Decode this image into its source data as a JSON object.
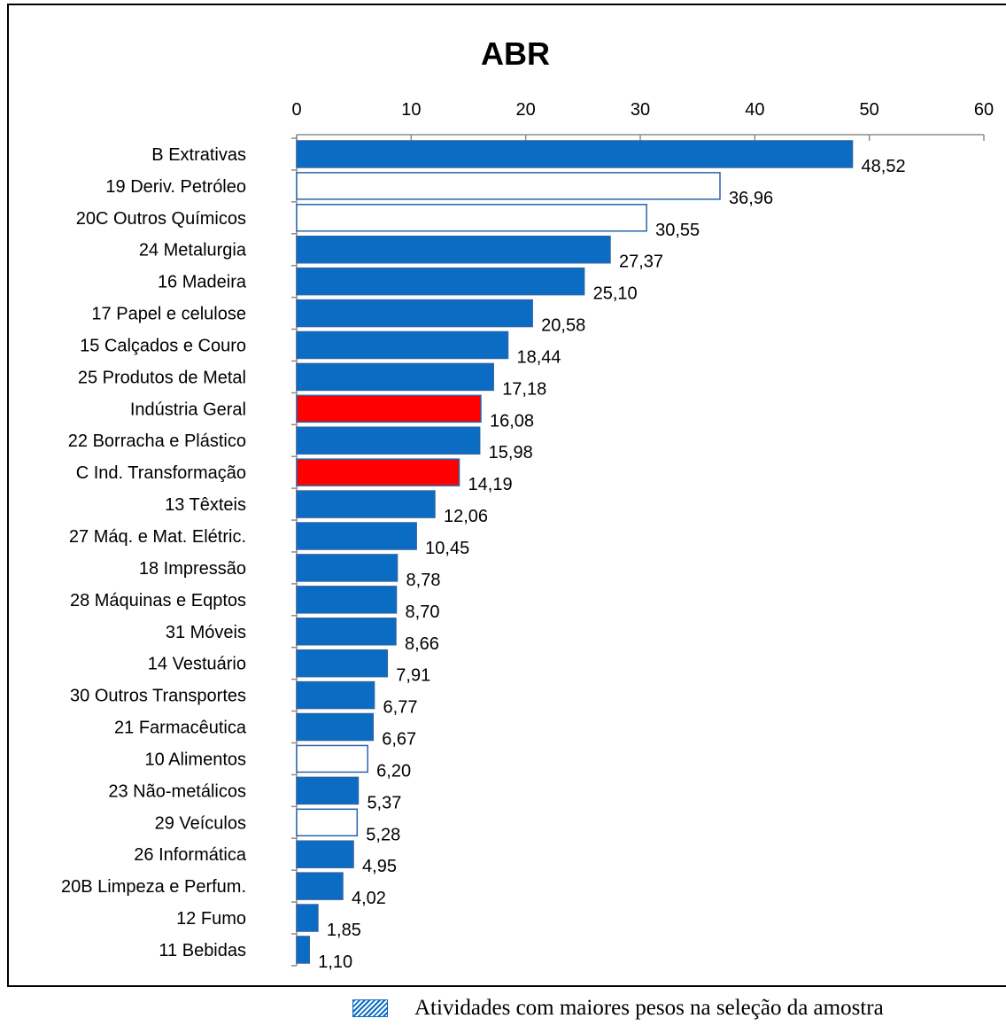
{
  "chart_data": {
    "type": "bar",
    "orientation": "horizontal",
    "title": "ABR",
    "xlim": [
      0,
      60
    ],
    "xticks": [
      "0",
      "10",
      "20",
      "30",
      "40",
      "50",
      "60"
    ],
    "categories": [
      "B  Extrativas",
      "19  Deriv. Petróleo",
      "20C  Outros Químicos",
      "24  Metalurgia",
      "16  Madeira",
      "17  Papel e celulose",
      "15  Calçados e Couro",
      "25  Produtos de Metal",
      "Indústria Geral",
      "22  Borracha e Plástico",
      "C  Ind. Transformação",
      "13  Têxteis",
      "27  Máq. e Mat. Elétric.",
      "18  Impressão",
      "28  Máquinas e Eqptos",
      "31  Móveis",
      "14  Vestuário",
      "30  Outros Transportes",
      "21  Farmacêutica",
      "10  Alimentos",
      "23  Não-metálicos",
      "29  Veículos",
      "26  Informática",
      "20B  Limpeza e Perfum.",
      "12  Fumo",
      "11  Bebidas"
    ],
    "values": [
      48.52,
      36.96,
      30.55,
      27.37,
      25.1,
      20.58,
      18.44,
      17.18,
      16.08,
      15.98,
      14.19,
      12.06,
      10.45,
      8.78,
      8.7,
      8.66,
      7.91,
      6.77,
      6.67,
      6.2,
      5.37,
      5.28,
      4.95,
      4.02,
      1.85,
      1.1
    ],
    "value_labels": [
      "48,52",
      "36,96",
      "30,55",
      "27,37",
      "25,10",
      "20,58",
      "18,44",
      "17,18",
      "16,08",
      "15,98",
      "14,19",
      "12,06",
      "10,45",
      "8,78",
      "8,70",
      "8,66",
      "7,91",
      "6,77",
      "6,67",
      "6,20",
      "5,37",
      "5,28",
      "4,95",
      "4,02",
      "1,85",
      "1,10"
    ],
    "bar_styles": [
      "blue",
      "white",
      "white",
      "blue",
      "blue",
      "blue",
      "blue",
      "blue",
      "red",
      "blue",
      "red",
      "blue",
      "blue",
      "blue",
      "blue",
      "blue",
      "blue",
      "blue",
      "blue",
      "white",
      "blue",
      "white",
      "blue",
      "blue",
      "blue",
      "blue"
    ],
    "colors": {
      "blue": "#0b6cc4",
      "red": "#ff0000",
      "white": "#ffffff",
      "outline": "#2a64a8"
    },
    "grid": false,
    "legend": "bottom"
  },
  "legend": {
    "text": "Atividades com maiores pesos na seleção da amostra"
  }
}
